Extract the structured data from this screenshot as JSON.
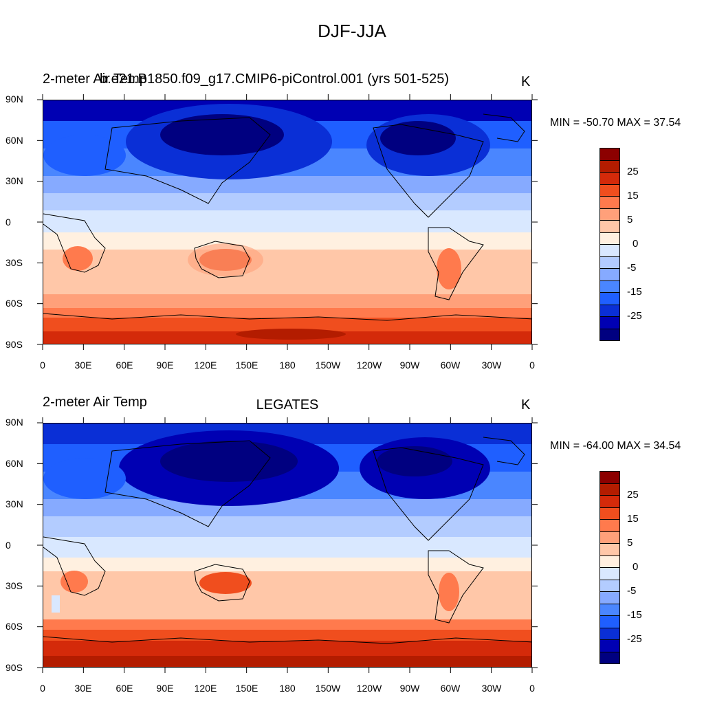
{
  "title": "DJF-JJA",
  "colors": {
    "scale": [
      "#000080",
      "#0000b3",
      "#0a2fd6",
      "#1f5fff",
      "#4a86ff",
      "#86aaff",
      "#b3ccff",
      "#d9e8ff",
      "#fff0e0",
      "#ffc7a8",
      "#ffa07a",
      "#ff7a4d",
      "#f04e1e",
      "#d42a0a",
      "#b31c00",
      "#8c0000"
    ]
  },
  "colorbar": {
    "labels": [
      "25",
      "15",
      "5",
      "0",
      "-5",
      "-15",
      "-25"
    ]
  },
  "panels": [
    {
      "left_label": "2-meter Air Temp",
      "center_label": "b.e21.B1850.f09_g17.CMIP6-piControl.001 (yrs 501-525)",
      "units": "K",
      "stats": "MIN = -50.70 MAX =  37.54",
      "lat_ticks": [
        "90N",
        "60N",
        "30N",
        "0",
        "30S",
        "60S",
        "90S"
      ],
      "lon_ticks": [
        "0",
        "30E",
        "60E",
        "90E",
        "120E",
        "150E",
        "180",
        "150W",
        "120W",
        "90W",
        "60W",
        "30W",
        "0"
      ]
    },
    {
      "left_label": "2-meter Air Temp",
      "center_label": "LEGATES",
      "units": "K",
      "stats": "MIN = -64.00 MAX =  34.54",
      "lat_ticks": [
        "90N",
        "60N",
        "30N",
        "0",
        "30S",
        "60S",
        "90S"
      ],
      "lon_ticks": [
        "0",
        "30E",
        "60E",
        "90E",
        "120E",
        "150E",
        "180",
        "150W",
        "120W",
        "90W",
        "60W",
        "30W",
        "0"
      ]
    }
  ]
}
